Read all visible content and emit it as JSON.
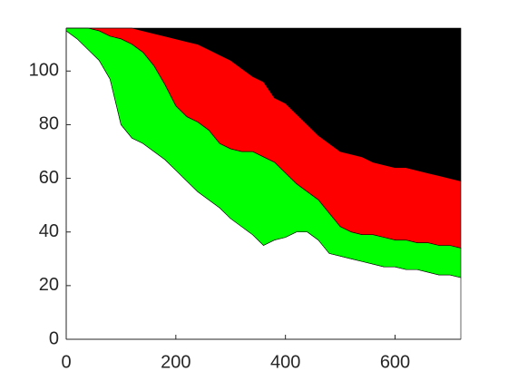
{
  "chart_data": {
    "type": "stacked-area",
    "x": [
      0,
      20,
      40,
      60,
      80,
      100,
      120,
      140,
      160,
      180,
      200,
      220,
      240,
      260,
      280,
      300,
      320,
      340,
      360,
      380,
      400,
      420,
      440,
      460,
      480,
      500,
      520,
      540,
      560,
      580,
      600,
      620,
      640,
      660,
      680,
      700,
      720
    ],
    "series": [
      {
        "color": "#ffffff",
        "values": [
          115,
          112,
          108,
          104,
          97,
          80,
          75,
          73,
          70,
          67,
          63,
          59,
          55,
          52,
          49,
          45,
          42,
          39,
          35,
          37,
          38,
          40,
          40,
          37,
          32,
          31,
          30,
          29,
          28,
          27,
          27,
          26,
          26,
          25,
          24,
          24,
          23
        ]
      },
      {
        "color": "#00ff00",
        "values": [
          1,
          4,
          8,
          11,
          16,
          32,
          35,
          34,
          32,
          28,
          24,
          24,
          26,
          26,
          24,
          26,
          28,
          31,
          33,
          29,
          24,
          18,
          15,
          15,
          15,
          11,
          10,
          10,
          11,
          11,
          10,
          11,
          10,
          11,
          11,
          11,
          11
        ]
      },
      {
        "color": "#ff0000",
        "values": [
          0,
          0,
          0,
          1,
          3,
          4,
          6,
          8,
          12,
          18,
          25,
          28,
          29,
          30,
          33,
          33,
          31,
          28,
          28,
          24,
          26,
          26,
          25,
          24,
          26,
          28,
          29,
          29,
          27,
          27,
          27,
          27,
          27,
          26,
          26,
          25,
          25
        ]
      },
      {
        "color": "#000000",
        "values": [
          0,
          0,
          0,
          0,
          0,
          0,
          0,
          1,
          2,
          3,
          4,
          5,
          6,
          8,
          10,
          12,
          15,
          18,
          20,
          26,
          28,
          32,
          36,
          40,
          43,
          46,
          47,
          48,
          50,
          51,
          52,
          52,
          53,
          54,
          55,
          56,
          57
        ]
      }
    ],
    "xlim": [
      0,
      720
    ],
    "ylim": [
      0,
      116
    ],
    "xticks": [
      0,
      200,
      400,
      600
    ],
    "yticks": [
      0,
      20,
      40,
      60,
      80,
      100
    ]
  }
}
